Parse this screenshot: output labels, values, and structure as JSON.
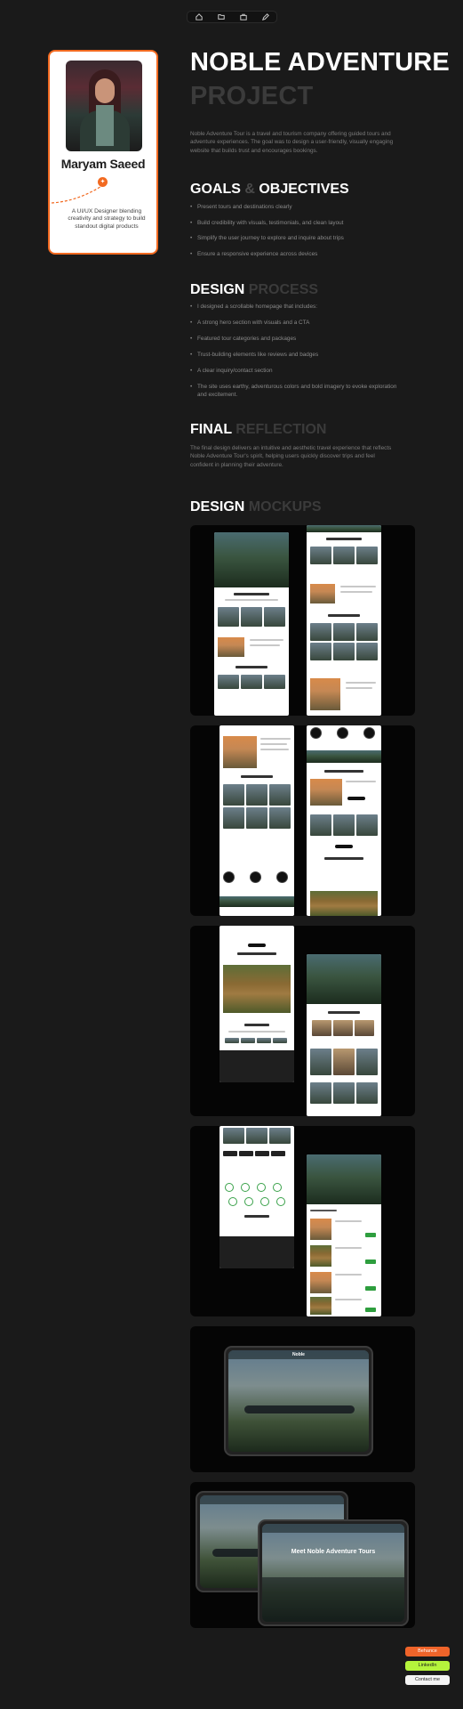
{
  "nav": {
    "items": [
      {
        "icon": "home-icon"
      },
      {
        "icon": "folder-icon"
      },
      {
        "icon": "briefcase-icon"
      },
      {
        "icon": "edit-icon"
      }
    ]
  },
  "profile": {
    "name": "Maryam Saeed",
    "tagline": "A UI/UX Designer blending creativity and strategy to build standout digital products",
    "badge_icon": "flame-icon",
    "accent_color": "#f26a21"
  },
  "hero": {
    "title_line1": "NOBLE ADVENTURE",
    "title_line2": "PROJECT",
    "intro": "Noble Adventure Tour is a travel and tourism company offering guided tours and adventure experiences. The goal was to design a user-friendly, visually engaging website that builds trust and encourages bookings."
  },
  "goals": {
    "heading_a": "GOALS",
    "heading_amp": "&",
    "heading_b": "OBJECTIVES",
    "items": [
      "Present tours and destinations clearly",
      "Build credibility with visuals, testimonials, and clean layout",
      "Simplify the user journey to explore and inquire about trips",
      "Ensure a responsive experience across devices"
    ]
  },
  "process": {
    "heading_a": "DESIGN",
    "heading_b": "PROCESS",
    "items": [
      "I designed a scrollable homepage that includes:",
      "A strong hero section with visuals and a CTA",
      "Featured tour categories and packages",
      "Trust-building elements like reviews and badges",
      "A clear inquiry/contact section",
      "The site uses earthy, adventurous colors and bold imagery to evoke exploration and excitement."
    ]
  },
  "reflection": {
    "heading_a": "FINAL",
    "heading_b": "REFLECTION",
    "text": "The final design delivers an intuitive and aesthetic travel experience that reflects Noble Adventure Tour's spirit, helping users quickly discover trips and feel confident in planning their adventure."
  },
  "mockups": {
    "heading_a": "DESIGN",
    "heading_b": "MOCKUPS",
    "tablet_hero_text": "Noble",
    "tablet_hero_text_2": "Meet Noble Adventure Tours"
  },
  "contact": {
    "buttons": [
      "Behance",
      "LinkedIn",
      "Contact me"
    ],
    "colors": [
      "#f0642a",
      "#b5f43c",
      "#f4f4f4"
    ]
  }
}
